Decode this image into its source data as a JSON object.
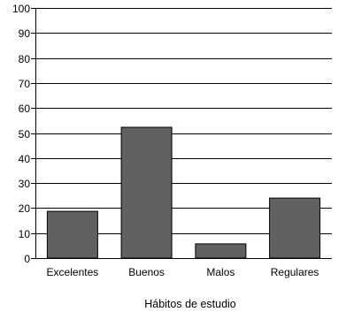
{
  "chart_data": {
    "type": "bar",
    "categories": [
      "Excelentes",
      "Buenos",
      "Malos",
      "Regulares"
    ],
    "values": [
      18.7,
      52.3,
      5.7,
      24.0
    ],
    "title": "",
    "xlabel": "Hábitos de estudio",
    "ylabel": "",
    "ylim": [
      0,
      100
    ],
    "yticks": [
      0,
      10,
      20,
      30,
      40,
      50,
      60,
      70,
      80,
      90,
      100
    ],
    "grid": true,
    "legend": "none",
    "colors": {
      "bar_fill": "#616161",
      "bar_stroke": "#000000",
      "grid": "#000000",
      "axis": "#000000"
    }
  }
}
